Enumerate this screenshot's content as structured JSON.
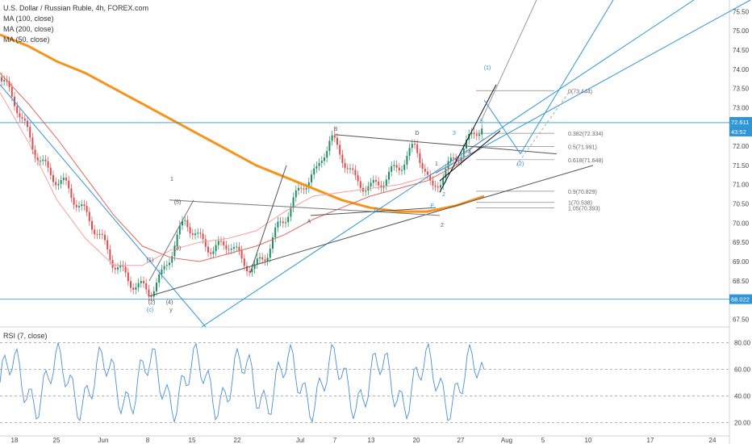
{
  "legend": {
    "title": "U.S. Dollar / Russian Ruble, 4h, FOREX.com",
    "ma1": "MA (100, close)",
    "ma2": "MA (200, close)",
    "ma3": "MA (50, close)"
  },
  "rsi_label": "RSI (7, close)",
  "price_badge": "72.611",
  "time_badge": "43:52",
  "low_badge": "68.022",
  "colors": {
    "ma100": "#e0675f",
    "ma200": "#f7931a",
    "ma50": "#f4a09c",
    "up": "#1e8e60",
    "down": "#e04b4b",
    "trend": "#2e96d6",
    "rsi": "#4a8fd6"
  },
  "chart_data": {
    "type": "line",
    "title": "U.S. Dollar / Russian Ruble, 4h, FOREX.com",
    "xlabel": "",
    "ylabel": "",
    "x_ticks": [
      "18",
      "25",
      "Jun",
      "8",
      "15",
      "22",
      "Jul",
      "7",
      "13",
      "20",
      "27",
      "Aug",
      "5",
      "10",
      "17",
      "24"
    ],
    "y_ticks": [
      75.5,
      75.0,
      74.5,
      74.0,
      73.5,
      73.0,
      72.5,
      72.0,
      71.5,
      71.0,
      70.5,
      70.0,
      69.5,
      69.0,
      68.5,
      68.0,
      67.5
    ],
    "ylim": [
      67.3,
      75.8
    ],
    "current_price": 72.611,
    "series": [
      {
        "name": "MA (200, close)",
        "values": [
          74.9,
          74.6,
          74.2,
          73.9,
          73.5,
          73.1,
          72.7,
          72.3,
          71.9,
          71.5,
          71.2,
          70.9,
          70.6,
          70.4,
          70.3,
          70.3,
          70.45,
          70.7
        ]
      },
      {
        "name": "MA (100, close)",
        "values": [
          73.9,
          73.1,
          72.2,
          71.2,
          70.2,
          69.4,
          69.1,
          69.0,
          69.2,
          69.4,
          69.7,
          70.1,
          70.4,
          70.7,
          70.9,
          71.1,
          71.5,
          72.0
        ]
      },
      {
        "name": "MA (50, close)",
        "values": [
          73.4,
          72.1,
          70.6,
          69.6,
          68.9,
          68.9,
          69.3,
          69.5,
          69.6,
          69.8,
          70.3,
          70.7,
          70.8,
          70.9,
          71.0,
          71.2,
          71.6,
          72.2
        ]
      }
    ],
    "fib_levels": [
      {
        "label": "0(73.444)",
        "value": 73.444
      },
      {
        "label": "0.382(72.334)",
        "value": 72.334
      },
      {
        "label": "0.5(71.991)",
        "value": 71.991
      },
      {
        "label": "0.618(71.648)",
        "value": 71.648
      },
      {
        "label": "0.9(70.829)",
        "value": 70.829
      },
      {
        "label": "1(70.538)",
        "value": 70.538
      },
      {
        "label": "1.05(70.393)",
        "value": 70.393
      }
    ],
    "wave_labels": [
      "(1)",
      "(2)",
      "(3)",
      "(4)",
      "(5)",
      "(c)",
      "y",
      "1",
      "2",
      "A",
      "B",
      "C",
      "D",
      "E",
      "1",
      "2",
      "3",
      "4",
      "5",
      "(1)",
      "(2)"
    ],
    "rsi": {
      "name": "RSI (7, close)",
      "levels": [
        80.0,
        60.0,
        40.0,
        20.0
      ],
      "ylim": [
        10,
        90
      ]
    }
  }
}
